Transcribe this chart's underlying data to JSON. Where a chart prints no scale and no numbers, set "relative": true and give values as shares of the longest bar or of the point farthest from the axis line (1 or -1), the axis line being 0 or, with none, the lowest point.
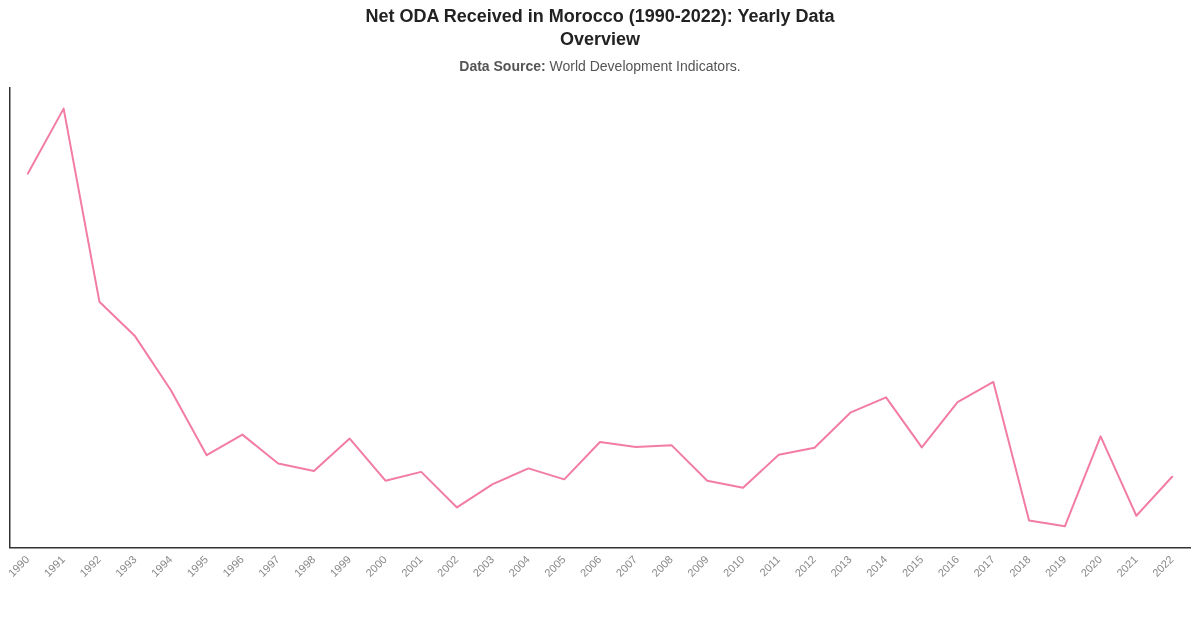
{
  "chart_data": {
    "type": "line",
    "title": "Net ODA Received in Morocco (1990-2022): Yearly Data Overview",
    "subtitle": "Data Source: World Development Indicators.",
    "categories": [
      "1990",
      "1991",
      "1992",
      "1993",
      "1994",
      "1995",
      "1996",
      "1997",
      "1998",
      "1999",
      "2000",
      "2001",
      "2002",
      "2003",
      "2004",
      "2005",
      "2006",
      "2007",
      "2008",
      "2009",
      "2010",
      "2011",
      "2012",
      "2013",
      "2014",
      "2015",
      "2016",
      "2017",
      "2018",
      "2019",
      "2020",
      "2021",
      "2022"
    ],
    "series": [
      {
        "color": "#f27ca6",
        "values": [
          0.852,
          1,
          0.56,
          0.481,
          0.358,
          0.21,
          0.257,
          0.191,
          0.174,
          0.248,
          0.152,
          0.172,
          0.091,
          0.144,
          0.18,
          0.155,
          0.24,
          0.229,
          0.233,
          0.152,
          0.136,
          0.211,
          0.227,
          0.307,
          0.342,
          0.228,
          0.331,
          0.377,
          0.061,
          0.048,
          0.253,
          0.072,
          0.161
        ]
      }
    ],
    "relative": true,
    "grid": false,
    "marker": "none",
    "line_style": "solid",
    "tick_labels": "x"
  }
}
